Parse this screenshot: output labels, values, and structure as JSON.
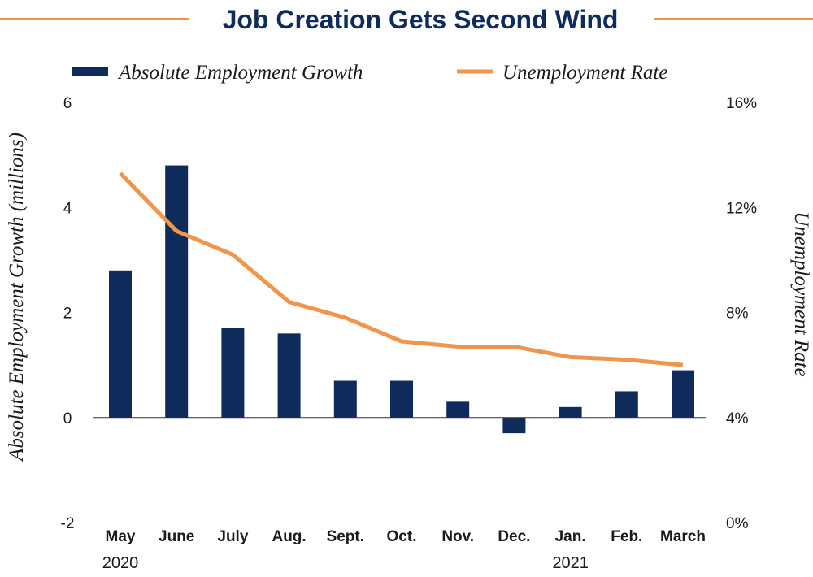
{
  "chart_data": {
    "type": "bar+line",
    "title": "Job Creation Gets Second Wind",
    "categories": [
      "May",
      "June",
      "July",
      "Aug.",
      "Sept.",
      "Oct.",
      "Nov.",
      "Dec.",
      "Jan.",
      "Feb.",
      "March"
    ],
    "year_labels": [
      {
        "category_index": 0,
        "label": "2020"
      },
      {
        "category_index": 8,
        "label": "2021"
      }
    ],
    "series": [
      {
        "name": "Absolute Employment Growth",
        "type": "bar",
        "axis": "left",
        "color": "#0f2b5b",
        "values": [
          2.8,
          4.8,
          1.7,
          1.6,
          0.7,
          0.7,
          0.3,
          -0.3,
          0.2,
          0.5,
          0.9
        ]
      },
      {
        "name": "Unemployment Rate",
        "type": "line",
        "axis": "right",
        "color": "#f0954e",
        "values": [
          13.3,
          11.1,
          10.2,
          8.4,
          7.8,
          6.9,
          6.7,
          6.7,
          6.3,
          6.2,
          6.0
        ]
      }
    ],
    "y_left": {
      "label": "Absolute Employment Growth (millions)",
      "min": -2,
      "max": 6,
      "ticks": [
        6,
        4,
        2,
        0,
        -2
      ],
      "tick_labels": [
        "6",
        "4",
        "2",
        "0",
        "-2"
      ]
    },
    "y_right": {
      "label": "Unemployment Rate",
      "min": 0,
      "max": 16,
      "ticks": [
        16,
        12,
        8,
        4,
        0
      ],
      "tick_labels": [
        "16%",
        "12%",
        "8%",
        "4%",
        "0%"
      ]
    },
    "legend_position": "top",
    "grid": false
  },
  "colors": {
    "title": "#0f2b5b",
    "rule": "#f0954e",
    "zero_line": "#333333"
  }
}
